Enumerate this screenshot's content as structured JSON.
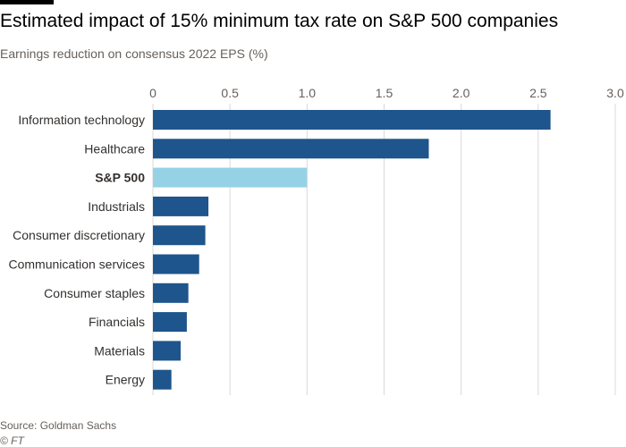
{
  "header": {
    "title": "Estimated impact of 15% minimum tax rate on S&P 500 companies",
    "subtitle": "Earnings reduction on consensus 2022 EPS (%)"
  },
  "footer": {
    "source": "Source: Goldman Sachs",
    "credit": "© FT"
  },
  "colors": {
    "bar": "#1e558c",
    "highlight": "#96d2e6",
    "grid": "#dcd9d6",
    "axis_text": "#66605c",
    "label_text": "#33302e"
  },
  "chart_data": {
    "type": "bar",
    "orientation": "horizontal",
    "title": "Estimated impact of 15% minimum tax rate on S&P 500 companies",
    "subtitle": "Earnings reduction on consensus 2022 EPS (%)",
    "categories": [
      "Information technology",
      "Healthcare",
      "S&P 500",
      "Industrials",
      "Consumer discretionary",
      "Communication services",
      "Consumer staples",
      "Financials",
      "Materials",
      "Energy"
    ],
    "values": [
      2.58,
      1.79,
      1.0,
      0.36,
      0.34,
      0.3,
      0.23,
      0.22,
      0.18,
      0.12
    ],
    "highlight": "S&P 500",
    "xlim": [
      0,
      3.0
    ],
    "xticks": [
      "0",
      "0.5",
      "1.0",
      "1.5",
      "2.0",
      "2.5",
      "3.0"
    ],
    "xtick_values": [
      0,
      0.5,
      1.0,
      1.5,
      2.0,
      2.5,
      3.0
    ],
    "grid": true,
    "xlabel": "",
    "ylabel": ""
  }
}
